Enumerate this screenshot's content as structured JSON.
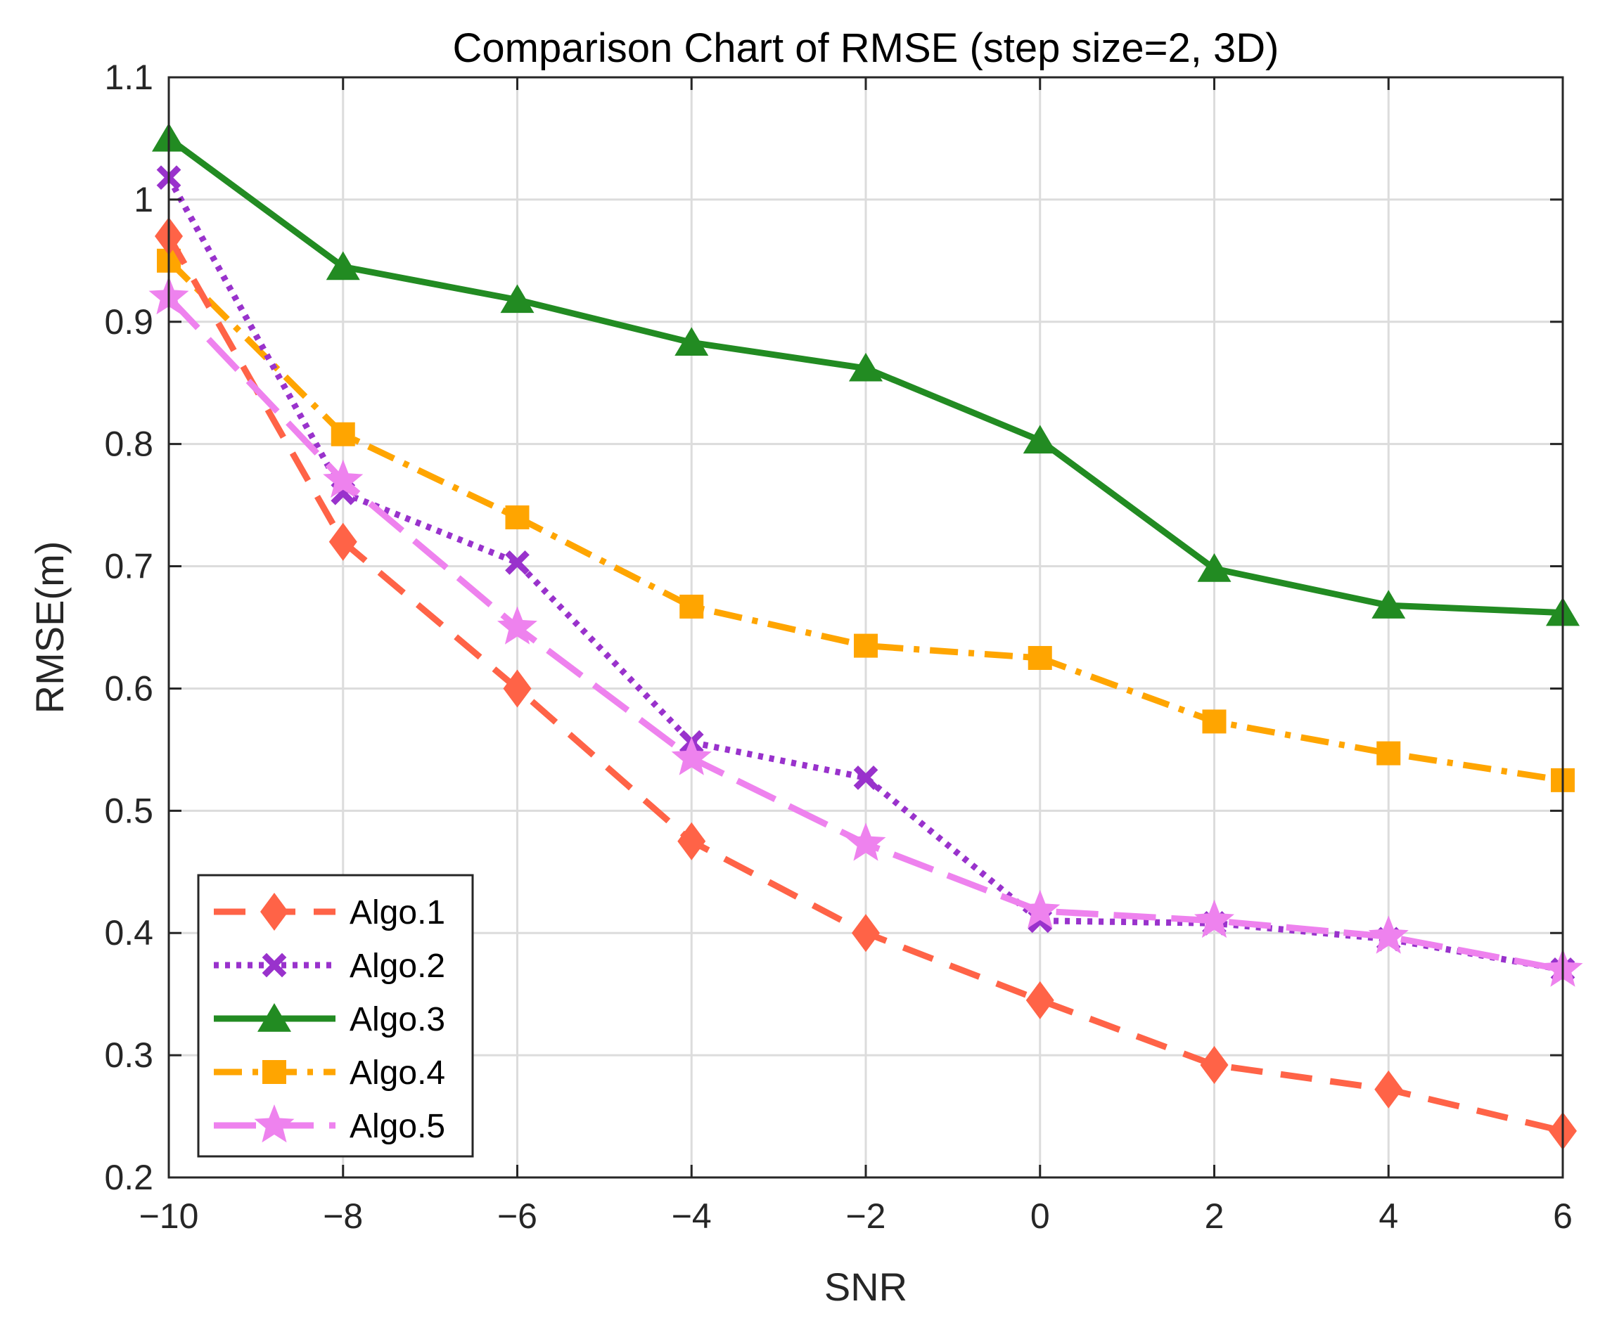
{
  "chart_data": {
    "type": "line",
    "title": "Comparison Chart of RMSE (step size=2, 3D)",
    "xlabel": "SNR",
    "ylabel": "RMSE(m)",
    "xlim": [
      -10,
      6
    ],
    "ylim": [
      0.2,
      1.1
    ],
    "grid": true,
    "legend_position": "bottom-left",
    "x": [
      -10,
      -8,
      -6,
      -4,
      -2,
      0,
      2,
      4,
      6
    ],
    "x_tick_labels": [
      "−10",
      "−8",
      "−6",
      "−4",
      "−2",
      "0",
      "2",
      "4",
      "6"
    ],
    "y_ticks": [
      0.2,
      0.3,
      0.4,
      0.5,
      0.6,
      0.7,
      0.8,
      0.9,
      1.0,
      1.1
    ],
    "y_tick_labels": [
      "0.2",
      "0.3",
      "0.4",
      "0.5",
      "0.6",
      "0.7",
      "0.8",
      "0.9",
      "1",
      "1.1"
    ],
    "series": [
      {
        "name": "Algo.1",
        "color": "#FF6347",
        "line_style": "dashed",
        "marker": "diamond",
        "values": [
          0.97,
          0.72,
          0.6,
          0.475,
          0.4,
          0.345,
          0.292,
          0.272,
          0.238
        ]
      },
      {
        "name": "Algo.2",
        "color": "#9932CC",
        "line_style": "dotted",
        "marker": "x",
        "values": [
          1.018,
          0.76,
          0.703,
          0.556,
          0.527,
          0.41,
          0.408,
          0.395,
          0.37
        ]
      },
      {
        "name": "Algo.3",
        "color": "#228B22",
        "line_style": "solid",
        "marker": "triangle",
        "values": [
          1.05,
          0.945,
          0.918,
          0.883,
          0.862,
          0.803,
          0.698,
          0.668,
          0.662
        ]
      },
      {
        "name": "Algo.4",
        "color": "#FFA500",
        "line_style": "dashdot",
        "marker": "square",
        "values": [
          0.95,
          0.808,
          0.74,
          0.667,
          0.635,
          0.625,
          0.573,
          0.547,
          0.525
        ]
      },
      {
        "name": "Algo.5",
        "color": "#EE82EE",
        "line_style": "longdash",
        "marker": "star",
        "values": [
          0.92,
          0.77,
          0.65,
          0.543,
          0.473,
          0.418,
          0.41,
          0.397,
          0.37
        ]
      }
    ]
  }
}
